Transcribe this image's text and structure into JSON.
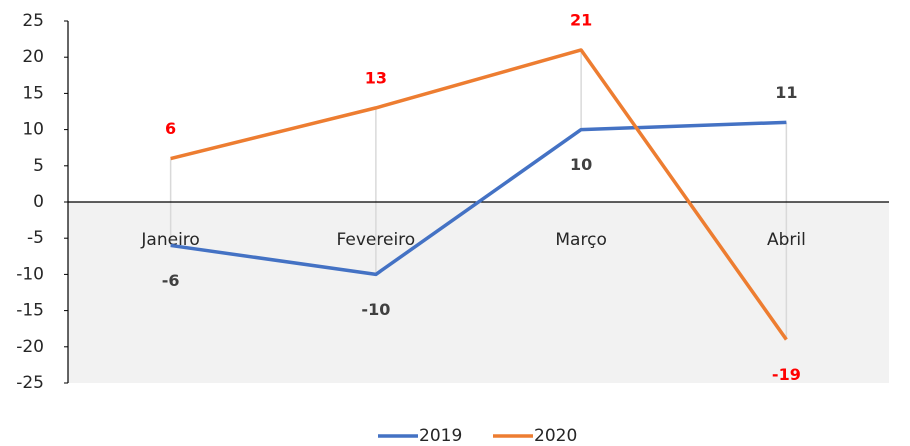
{
  "chart_data": {
    "type": "line",
    "categories": [
      "Janeiro",
      "Fevereiro",
      "Março",
      "Abril"
    ],
    "series": [
      {
        "name": "2019",
        "color": "#4472c4",
        "label_color": "#404040",
        "values": [
          -6,
          -10,
          10,
          11
        ]
      },
      {
        "name": "2020",
        "color": "#ed7d31",
        "label_color": "#ff0000",
        "values": [
          6,
          13,
          21,
          -19
        ]
      }
    ],
    "ylim": [
      -25,
      25
    ],
    "yticks": [
      -25,
      -20,
      -15,
      -10,
      -5,
      0,
      5,
      10,
      15,
      20,
      25
    ],
    "legend": "bottom"
  }
}
